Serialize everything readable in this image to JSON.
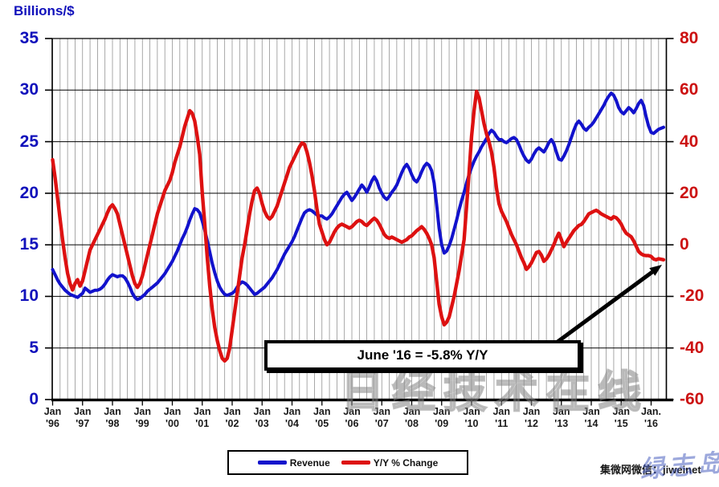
{
  "header": {
    "axis_title": "Billions/$"
  },
  "colors": {
    "revenue_line": "#1212cc",
    "yoy_line": "#dd1111",
    "left_axis_labels": "#1111bb",
    "right_axis_labels": "#cc1111",
    "x_axis_labels": "#1a1a1a",
    "grid_minor": "#8c8c8c",
    "grid_major": "#000000"
  },
  "left_axis": {
    "ticks": [
      "35",
      "30",
      "25",
      "20",
      "15",
      "10",
      "5",
      "0"
    ]
  },
  "right_axis": {
    "ticks": [
      "80",
      "60",
      "40",
      "20",
      "0",
      "-20",
      "-40",
      "-60"
    ]
  },
  "x_axis": {
    "labels": [
      "Jan\n'96",
      "Jan\n'97",
      "Jan\n'98",
      "Jan\n'99",
      "Jan\n'00",
      "Jan\n'01",
      "Jan\n'02",
      "Jan\n'03",
      "Jan\n'04",
      "Jan\n'05",
      "Jan\n'06",
      "Jan\n'07",
      "Jan\n'08",
      "Jan\n'09",
      "Jan\n'10",
      "Jan\n'11",
      "Jan\n'12",
      "Jan\n'13",
      "Jan\n'14",
      "Jan\n'15",
      "Jan.\n'16"
    ]
  },
  "annotation": {
    "text": "June '16 = -5.8% Y/Y"
  },
  "legend": {
    "items": [
      {
        "label": "Revenue",
        "color": "#1212cc"
      },
      {
        "label": "Y/Y % Change",
        "color": "#dd1111"
      }
    ]
  },
  "watermarks": {
    "center": "日经技术在线",
    "corner_text": "集微网微信：jiweinet",
    "corner_script": "绿志岛"
  },
  "chart_data": {
    "type": "line",
    "title": "",
    "x_unit": "month",
    "x_start": "1996-01",
    "x_end": "2016-06",
    "left_ylabel": "Billions/$",
    "left_ylim": [
      0,
      35
    ],
    "right_ylabel": "Y/Y % Change",
    "right_ylim": [
      -60,
      80
    ],
    "grid": "vertical quarterly, horizontal every 5 units",
    "legend_position": "bottom-center",
    "annotation": {
      "text": "June '16 = -5.8% Y/Y",
      "points_to": {
        "month": "2016-06",
        "yoy_pct": -5.8
      }
    },
    "series": [
      {
        "name": "Revenue",
        "axis": "left",
        "unit": "US$ billions per month",
        "color": "#1212cc",
        "values": [
          12.6,
          12.1,
          11.6,
          11.2,
          10.9,
          10.6,
          10.4,
          10.2,
          10.1,
          10.0,
          9.9,
          10.1,
          10.3,
          10.8,
          10.6,
          10.4,
          10.5,
          10.6,
          10.6,
          10.7,
          10.9,
          11.2,
          11.6,
          11.9,
          12.1,
          12.0,
          11.9,
          12.0,
          12.0,
          11.8,
          11.4,
          10.9,
          10.3,
          9.9,
          9.7,
          9.8,
          10.0,
          10.2,
          10.5,
          10.7,
          10.9,
          11.1,
          11.3,
          11.6,
          11.9,
          12.2,
          12.6,
          13.0,
          13.4,
          13.9,
          14.4,
          15.0,
          15.6,
          16.1,
          16.7,
          17.4,
          18.0,
          18.5,
          18.4,
          18.1,
          17.3,
          16.4,
          15.4,
          14.3,
          13.2,
          12.3,
          11.5,
          10.9,
          10.5,
          10.2,
          10.1,
          10.2,
          10.3,
          10.5,
          10.9,
          11.2,
          11.4,
          11.3,
          11.1,
          10.8,
          10.5,
          10.2,
          10.3,
          10.5,
          10.7,
          10.9,
          11.2,
          11.5,
          11.8,
          12.2,
          12.6,
          13.1,
          13.6,
          14.1,
          14.5,
          14.9,
          15.3,
          15.8,
          16.4,
          17.0,
          17.6,
          18.1,
          18.3,
          18.4,
          18.3,
          18.1,
          17.9,
          17.8,
          17.8,
          17.6,
          17.5,
          17.7,
          18.0,
          18.4,
          18.8,
          19.2,
          19.6,
          19.9,
          20.1,
          19.7,
          19.3,
          19.6,
          20.0,
          20.4,
          20.8,
          20.5,
          20.1,
          20.6,
          21.2,
          21.6,
          21.2,
          20.5,
          20.0,
          19.6,
          19.4,
          19.7,
          20.1,
          20.4,
          20.8,
          21.4,
          22.0,
          22.5,
          22.8,
          22.4,
          21.8,
          21.3,
          21.1,
          21.5,
          22.1,
          22.6,
          22.9,
          22.7,
          22.2,
          21.0,
          18.9,
          16.6,
          15.0,
          14.2,
          14.4,
          14.9,
          15.6,
          16.5,
          17.4,
          18.4,
          19.3,
          20.1,
          21.0,
          21.8,
          22.5,
          23.1,
          23.6,
          24.0,
          24.5,
          24.9,
          25.3,
          25.8,
          26.1,
          25.9,
          25.5,
          25.2,
          25.2,
          25.0,
          24.9,
          25.1,
          25.3,
          25.4,
          25.2,
          24.7,
          24.1,
          23.6,
          23.2,
          23.0,
          23.3,
          23.8,
          24.2,
          24.4,
          24.2,
          24.0,
          24.4,
          24.9,
          25.2,
          24.8,
          24.0,
          23.3,
          23.2,
          23.6,
          24.1,
          24.7,
          25.4,
          26.1,
          26.7,
          27.0,
          26.7,
          26.3,
          26.1,
          26.4,
          26.6,
          26.9,
          27.3,
          27.7,
          28.1,
          28.5,
          29.0,
          29.4,
          29.7,
          29.5,
          29.0,
          28.3,
          27.9,
          27.7,
          28.0,
          28.3,
          28.1,
          27.8,
          28.2,
          28.7,
          29.0,
          28.5,
          27.4,
          26.5,
          25.9,
          25.8,
          26.0,
          26.2,
          26.3,
          26.4
        ]
      },
      {
        "name": "Y/Y % Change",
        "axis": "right",
        "unit": "%",
        "color": "#dd1111",
        "values": [
          33,
          26,
          18,
          10,
          2,
          -5,
          -11,
          -15,
          -17.5,
          -15,
          -13.5,
          -16,
          -14,
          -10,
          -6,
          -2,
          0,
          2,
          4,
          6,
          8,
          10,
          12.5,
          14.5,
          15.5,
          14,
          12,
          8,
          4,
          0,
          -4,
          -8,
          -12,
          -15,
          -16.5,
          -15,
          -12,
          -8,
          -4,
          0,
          4,
          8,
          12,
          15,
          18,
          21,
          23,
          25,
          28,
          32,
          35,
          38,
          42,
          46,
          49,
          52,
          51,
          48,
          42,
          35,
          20,
          8,
          -5,
          -16,
          -25,
          -32,
          -37,
          -41,
          -44,
          -45,
          -44,
          -40,
          -33,
          -26,
          -19,
          -12,
          -5,
          0,
          6,
          12,
          17,
          21,
          22,
          20,
          16,
          13,
          11,
          10,
          11,
          13,
          15,
          18,
          21,
          24,
          27,
          30,
          32,
          34,
          36,
          38,
          39.5,
          39,
          36,
          32,
          27,
          21,
          14,
          8,
          5,
          2,
          0,
          1,
          3,
          5,
          6.5,
          7.5,
          8,
          7.5,
          7,
          6.5,
          7,
          8,
          9,
          9.5,
          9,
          8,
          7.5,
          8.5,
          9.5,
          10.3,
          9.5,
          8,
          6,
          4,
          3,
          2.5,
          3,
          2.5,
          2,
          1.5,
          1,
          1.5,
          2,
          3,
          3.5,
          4.5,
          5.5,
          6.2,
          7,
          6,
          4.5,
          2.5,
          0,
          -5,
          -14,
          -23,
          -28,
          -31,
          -30,
          -28,
          -24,
          -20,
          -15,
          -10,
          -4,
          2,
          15,
          28,
          42,
          52,
          59.5,
          57,
          52,
          47,
          43,
          40,
          36,
          30,
          22,
          16,
          13,
          11,
          9,
          6.5,
          4,
          2,
          0,
          -2.5,
          -5,
          -7,
          -9.5,
          -8.5,
          -7,
          -5,
          -3,
          -2.6,
          -4,
          -6.4,
          -5.5,
          -4,
          -2,
          0,
          2.5,
          4.5,
          2,
          -0.7,
          1,
          2.5,
          4,
          5.5,
          6.5,
          7.5,
          7.9,
          9,
          10.5,
          12,
          12.5,
          13,
          13.4,
          12.8,
          12,
          11.5,
          11,
          10.5,
          10,
          10.9,
          10.5,
          9.5,
          8,
          6,
          4.5,
          3.8,
          3.1,
          1.5,
          -0.5,
          -2.6,
          -3.5,
          -4,
          -4.2,
          -4.2,
          -4.5,
          -5.5,
          -5.8,
          -5.4,
          -5.6,
          -5.8
        ]
      }
    ]
  }
}
